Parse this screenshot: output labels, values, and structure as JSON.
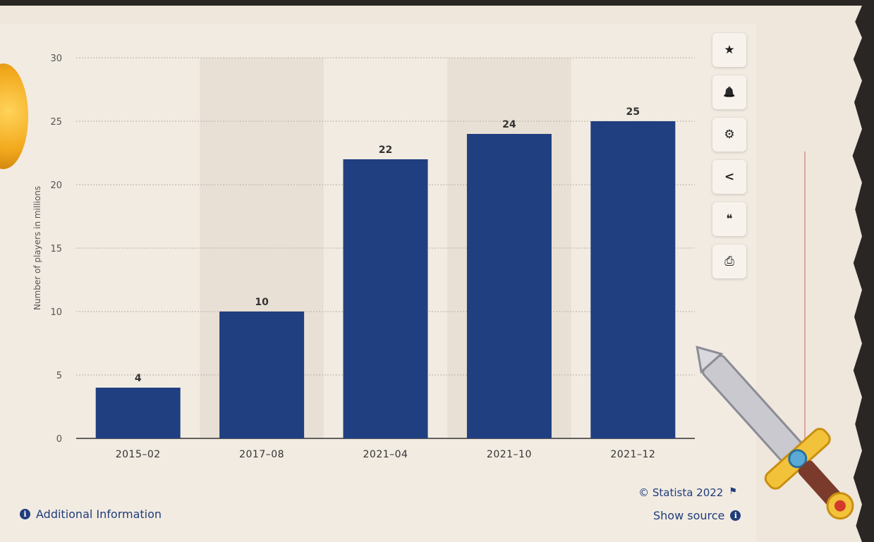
{
  "chart_data": {
    "type": "bar",
    "categories": [
      "2015-02",
      "2017-08",
      "2021-04",
      "2021-10",
      "2021-12"
    ],
    "values": [
      4,
      10,
      22,
      24,
      25
    ],
    "ylabel": "Number of players in millions",
    "xlabel": "",
    "ylim": [
      0,
      30
    ],
    "yticks": [
      0,
      5,
      10,
      15,
      20,
      25,
      30
    ],
    "grid": true,
    "bar_color": "#1f3f80"
  },
  "toolbar": {
    "buttons": [
      {
        "name": "favorite",
        "icon": "★"
      },
      {
        "name": "notification",
        "icon": "🔔"
      },
      {
        "name": "settings",
        "icon": "⚙"
      },
      {
        "name": "share",
        "icon": "<"
      },
      {
        "name": "cite",
        "icon": "❝"
      },
      {
        "name": "print",
        "icon": "⎙"
      }
    ]
  },
  "footer": {
    "additional_info": "Additional Information",
    "copyright": "© Statista 2022",
    "show_source": "Show source"
  },
  "colors": {
    "accent": "#1f3d7a",
    "bar": "#1f3f80"
  }
}
